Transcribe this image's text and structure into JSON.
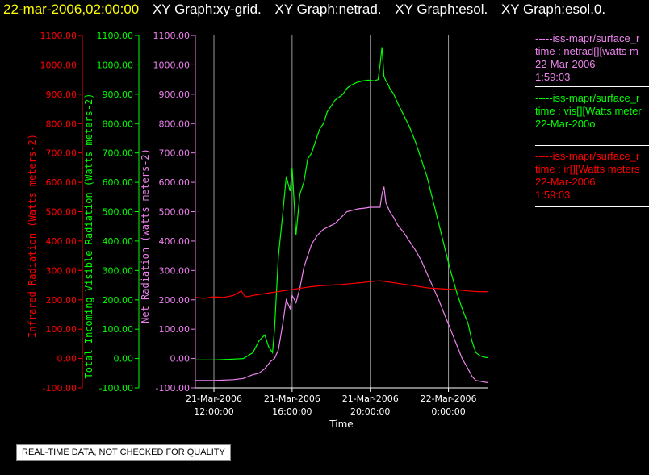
{
  "header": {
    "timestamp": "22-mar-2006,02:00:00",
    "graph_titles": [
      "XY Graph:xy-grid.",
      "XY Graph:netrad.",
      "XY Graph:esol.",
      "XY Graph:esol.0."
    ]
  },
  "legend": [
    {
      "source": "-----iss-mapr/surface_r",
      "desc": "time : netrad[][watts m",
      "date": "22-Mar-2006",
      "time": "1:59:03",
      "color": "#ee82ee"
    },
    {
      "source": "-----iss-mapr/surface_r",
      "desc": "time : vis[][Watts meter",
      "date": "22-Mar-200o",
      "time": "",
      "color": "#00ff00"
    },
    {
      "source": "-----iss-mapr/surface_r",
      "desc": "time : ir[][Watts meters",
      "date": "22-Mar-2006",
      "time": "1:59:03",
      "color": "#ff0000"
    }
  ],
  "qc_note": "REAL-TIME DATA, NOT CHECKED FOR QUALITY",
  "chart_data": {
    "type": "line",
    "xlabel": "Time",
    "x_ticks": [
      {
        "hours": 0,
        "date": "21-Mar-2006",
        "time": "12:00:00"
      },
      {
        "hours": 4,
        "date": "21-Mar-2006",
        "time": "16:00:00"
      },
      {
        "hours": 8,
        "date": "21-Mar-2006",
        "time": "20:00:00"
      },
      {
        "hours": 12,
        "date": "22-Mar-2006",
        "time": "0:00:00"
      }
    ],
    "xlim": [
      -0.95,
      14.0
    ],
    "ylim": [
      -100,
      1100
    ],
    "y_ticks": [
      -100,
      0,
      100,
      200,
      300,
      400,
      500,
      600,
      700,
      800,
      900,
      1000,
      1100
    ],
    "grid": "vertical lines at x ticks",
    "axes": [
      {
        "label": "Infrared Radiation (Watts meters-2)",
        "color": "#ff0000"
      },
      {
        "label": "Total Incoming Visible Radiation (Watts meters-2)",
        "color": "#00ff00"
      },
      {
        "label": "Net Radiation (watts meters-2)",
        "color": "#ee82ee"
      }
    ],
    "series": [
      {
        "name": "time : netrad[][watts m",
        "color": "#ee82ee",
        "x": [
          -0.95,
          0,
          1,
          1.5,
          2,
          2.3,
          2.6,
          2.9,
          3.1,
          3.3,
          3.5,
          3.7,
          3.9,
          4.0,
          4.2,
          4.4,
          4.6,
          4.8,
          5.0,
          5.3,
          5.6,
          5.9,
          6.2,
          6.5,
          6.8,
          7.1,
          7.4,
          7.7,
          8.0,
          8.3,
          8.5,
          8.6,
          8.7,
          8.8,
          8.9,
          9.0,
          9.2,
          9.4,
          9.7,
          10.0,
          10.3,
          10.6,
          10.9,
          11.2,
          11.5,
          11.8,
          12.1,
          12.4,
          12.7,
          13.0,
          13.2,
          13.4,
          13.6,
          13.8,
          14.0
        ],
        "y": [
          -75,
          -75,
          -72,
          -68,
          -55,
          -50,
          -35,
          -10,
          0,
          30,
          110,
          200,
          170,
          215,
          190,
          240,
          310,
          350,
          390,
          420,
          440,
          450,
          460,
          480,
          500,
          505,
          510,
          512,
          515,
          515,
          515,
          560,
          585,
          530,
          515,
          500,
          480,
          455,
          430,
          400,
          370,
          335,
          290,
          245,
          200,
          150,
          100,
          50,
          0,
          -35,
          -60,
          -75,
          -77,
          -80,
          -82
        ]
      },
      {
        "name": "time : vis[][Watts meter",
        "color": "#00ff00",
        "x": [
          -0.95,
          0,
          1,
          1.5,
          2.0,
          2.3,
          2.6,
          2.8,
          3.0,
          3.1,
          3.3,
          3.5,
          3.7,
          3.9,
          4.0,
          4.2,
          4.4,
          4.6,
          4.8,
          5.0,
          5.2,
          5.4,
          5.6,
          5.8,
          6.0,
          6.2,
          6.4,
          6.6,
          6.8,
          7.0,
          7.3,
          7.6,
          7.9,
          8.2,
          8.4,
          8.5,
          8.6,
          8.7,
          8.8,
          8.9,
          9.0,
          9.2,
          9.4,
          9.7,
          10.0,
          10.3,
          10.6,
          10.9,
          11.2,
          11.5,
          11.8,
          12.1,
          12.4,
          12.7,
          13.0,
          13.2,
          13.4,
          13.6,
          13.8,
          14.0
        ],
        "y": [
          -5,
          -5,
          -2,
          0,
          20,
          60,
          80,
          40,
          20,
          100,
          350,
          480,
          620,
          570,
          650,
          420,
          560,
          600,
          680,
          700,
          740,
          780,
          800,
          840,
          860,
          880,
          890,
          900,
          920,
          930,
          940,
          945,
          948,
          945,
          950,
          1000,
          1060,
          960,
          945,
          935,
          920,
          900,
          870,
          830,
          790,
          740,
          680,
          620,
          540,
          460,
          380,
          300,
          230,
          170,
          120,
          60,
          20,
          10,
          5,
          3
        ]
      },
      {
        "name": "time : ir[][Watts meters",
        "color": "#ff0000",
        "x": [
          -0.95,
          -0.5,
          0,
          0.5,
          1,
          1.4,
          1.6,
          1.8,
          2.0,
          2.5,
          3.0,
          3.5,
          4.0,
          4.5,
          5.0,
          5.5,
          6.0,
          6.5,
          7.0,
          7.5,
          8.0,
          8.5,
          9.0,
          9.5,
          10.0,
          10.5,
          11.0,
          11.5,
          12.0,
          12.5,
          13.0,
          13.5,
          14.0
        ],
        "y": [
          208,
          205,
          210,
          208,
          215,
          230,
          210,
          212,
          215,
          220,
          225,
          230,
          235,
          240,
          245,
          248,
          250,
          252,
          255,
          258,
          262,
          265,
          260,
          255,
          250,
          245,
          240,
          238,
          236,
          234,
          230,
          228,
          228
        ]
      }
    ]
  }
}
